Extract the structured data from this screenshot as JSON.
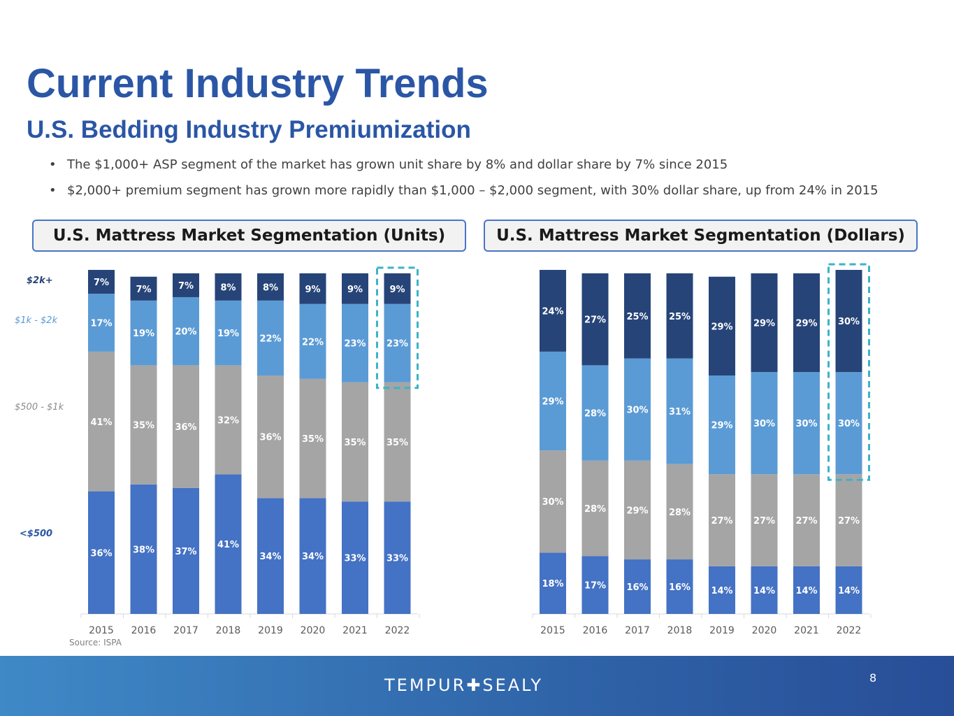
{
  "slide": {
    "title": "Current Industry Trends",
    "subtitle": "U.S. Bedding Industry Premiumization",
    "bullets": [
      "The $1,000+ ASP segment of the market has grown unit share by 8% and dollar share by 7% since 2015",
      "$2,000+ premium segment has grown more rapidly than $1,000 – $2,000 segment, with 30% dollar share, up from 24% in 2015"
    ],
    "bullet_symbol": "•",
    "segment_labels": [
      "$2k+",
      "$1k - $2k",
      "$500 - $1k",
      "<$500"
    ],
    "source": "Source: ISPA",
    "logo": "TEMPUR✚SEALY",
    "page_number": "8"
  },
  "colors": {
    "seg_lt500": "#4472c4",
    "seg_500_1k": "#a5a5a5",
    "seg_1k_2k": "#5b9bd5",
    "seg_2k_plus": "#264478",
    "highlight": "#3bb3c8",
    "title": "#2a56a5"
  },
  "chart_data": [
    {
      "type": "bar",
      "stacked": true,
      "title": "U.S. Mattress Market Segmentation (Units)",
      "categories": [
        "2015",
        "2016",
        "2017",
        "2018",
        "2019",
        "2020",
        "2021",
        "2022"
      ],
      "series": [
        {
          "name": "<$500",
          "values": [
            36,
            38,
            37,
            41,
            34,
            34,
            33,
            33
          ]
        },
        {
          "name": "$500 - $1k",
          "values": [
            41,
            35,
            36,
            32,
            36,
            35,
            35,
            35
          ]
        },
        {
          "name": "$1k - $2k",
          "values": [
            17,
            19,
            20,
            19,
            22,
            22,
            23,
            23
          ]
        },
        {
          "name": "$2k+",
          "values": [
            7,
            7,
            7,
            8,
            8,
            9,
            9,
            9
          ]
        }
      ],
      "value_suffix": "%",
      "highlight": {
        "category": "2022",
        "series": [
          "$1k - $2k",
          "$2k+"
        ]
      }
    },
    {
      "type": "bar",
      "stacked": true,
      "title": "U.S. Mattress Market Segmentation (Dollars)",
      "categories": [
        "2015",
        "2016",
        "2017",
        "2018",
        "2019",
        "2020",
        "2021",
        "2022"
      ],
      "series": [
        {
          "name": "<$500",
          "values": [
            18,
            17,
            16,
            16,
            14,
            14,
            14,
            14
          ]
        },
        {
          "name": "$500 - $1k",
          "values": [
            30,
            28,
            29,
            28,
            27,
            27,
            27,
            27
          ]
        },
        {
          "name": "$1k - $2k",
          "values": [
            29,
            28,
            30,
            31,
            29,
            30,
            30,
            30
          ]
        },
        {
          "name": "$2k+",
          "values": [
            24,
            27,
            25,
            25,
            29,
            29,
            29,
            30
          ]
        }
      ],
      "value_suffix": "%",
      "highlight": {
        "category": "2022",
        "series": [
          "$1k - $2k",
          "$2k+"
        ]
      }
    }
  ]
}
